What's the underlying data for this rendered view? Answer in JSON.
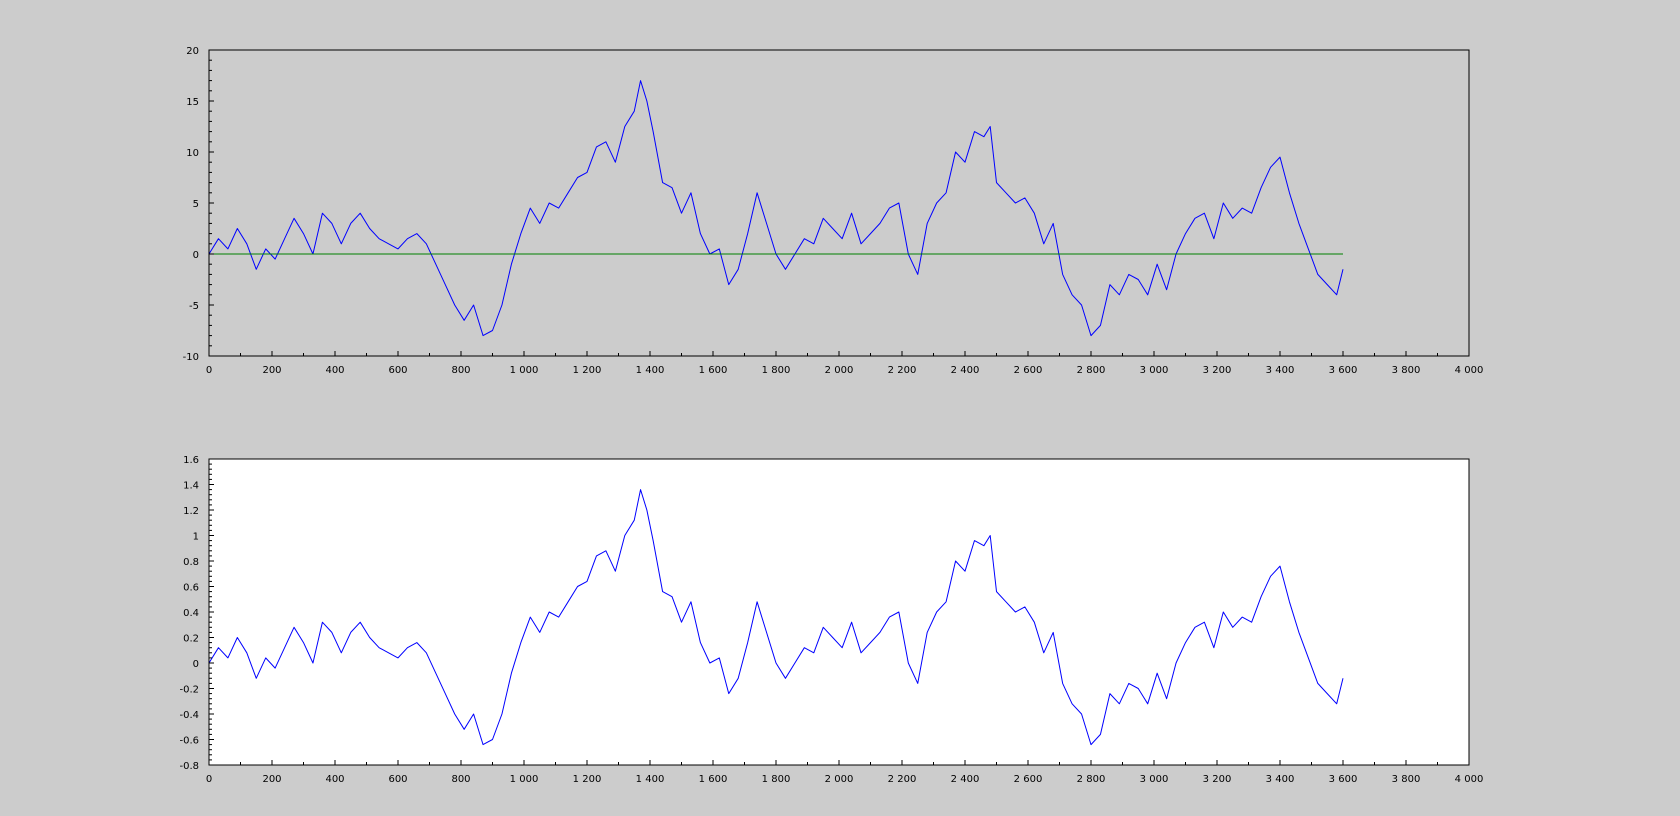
{
  "figure": {
    "background": "#cccccc"
  },
  "chart_data": [
    {
      "type": "line",
      "title": "",
      "xlabel": "",
      "ylabel": "",
      "background": "#cccccc",
      "xlim": [
        0,
        4000
      ],
      "ylim": [
        -10,
        20
      ],
      "x_ticks": [
        0,
        200,
        400,
        600,
        800,
        1000,
        1200,
        1400,
        1600,
        1800,
        2000,
        2200,
        2400,
        2600,
        2800,
        3000,
        3200,
        3400,
        3600,
        3800,
        4000
      ],
      "x_tick_labels": [
        "0",
        "200",
        "400",
        "600",
        "800",
        "1 000",
        "1 200",
        "1 400",
        "1 600",
        "1 800",
        "2 000",
        "2 200",
        "2 400",
        "2 600",
        "2 800",
        "3 000",
        "3 200",
        "3 400",
        "3 600",
        "3 800",
        "4 000"
      ],
      "y_ticks": [
        -10,
        -5,
        0,
        5,
        10,
        15,
        20
      ],
      "y_tick_labels": [
        "-10",
        "-5",
        "0",
        "5",
        "10",
        "15",
        "20"
      ],
      "grid": false,
      "series": [
        {
          "color": "#0000ff",
          "x": [
            0,
            30,
            60,
            90,
            120,
            150,
            180,
            210,
            240,
            270,
            300,
            330,
            360,
            390,
            420,
            450,
            480,
            510,
            540,
            570,
            600,
            630,
            660,
            690,
            720,
            750,
            780,
            810,
            840,
            870,
            900,
            930,
            960,
            990,
            1020,
            1050,
            1080,
            1110,
            1140,
            1170,
            1200,
            1230,
            1260,
            1290,
            1320,
            1350,
            1370,
            1390,
            1410,
            1440,
            1470,
            1500,
            1530,
            1560,
            1590,
            1620,
            1650,
            1680,
            1710,
            1740,
            1770,
            1800,
            1830,
            1860,
            1890,
            1920,
            1950,
            1980,
            2010,
            2040,
            2070,
            2100,
            2130,
            2160,
            2190,
            2220,
            2250,
            2280,
            2310,
            2340,
            2370,
            2400,
            2430,
            2460,
            2480,
            2500,
            2530,
            2560,
            2590,
            2620,
            2650,
            2680,
            2710,
            2740,
            2770,
            2800,
            2830,
            2860,
            2890,
            2920,
            2950,
            2980,
            3010,
            3040,
            3070,
            3100,
            3130,
            3160,
            3190,
            3220,
            3250,
            3280,
            3310,
            3340,
            3370,
            3400,
            3430,
            3460,
            3490,
            3520,
            3550,
            3580,
            3600
          ],
          "y": [
            0,
            1.5,
            0.5,
            2.5,
            1,
            -1.5,
            0.5,
            -0.5,
            1.5,
            3.5,
            2,
            0,
            4,
            3,
            1,
            3,
            4,
            2.5,
            1.5,
            1,
            0.5,
            1.5,
            2,
            1,
            -1,
            -3,
            -5,
            -6.5,
            -5,
            -8,
            -7.5,
            -5,
            -1,
            2,
            4.5,
            3,
            5,
            4.5,
            6,
            7.5,
            8,
            10.5,
            11,
            9,
            12.5,
            14,
            17,
            15,
            12,
            7,
            6.5,
            4,
            6,
            2,
            0,
            0.5,
            -3,
            -1.5,
            2,
            6,
            3,
            0,
            -1.5,
            0,
            1.5,
            1,
            3.5,
            2.5,
            1.5,
            4,
            1,
            2,
            3,
            4.5,
            5,
            0,
            -2,
            3,
            5,
            6,
            10,
            9,
            12,
            11.5,
            12.5,
            7,
            6,
            5,
            5.5,
            4,
            1,
            3,
            -2,
            -4,
            -5,
            -8,
            -7,
            -3,
            -4,
            -2,
            -2.5,
            -4,
            -1,
            -3.5,
            0,
            2,
            3.5,
            4,
            1.5,
            5,
            3.5,
            4.5,
            4,
            6.5,
            8.5,
            9.5,
            6,
            3,
            0.5,
            -2,
            -3,
            -4,
            -1.5
          ]
        },
        {
          "color": "#008000",
          "x": [
            0,
            3600
          ],
          "y": [
            0,
            0
          ]
        }
      ]
    },
    {
      "type": "line",
      "title": "",
      "xlabel": "",
      "ylabel": "",
      "background": "#ffffff",
      "xlim": [
        0,
        4000
      ],
      "ylim": [
        -0.8,
        1.6
      ],
      "x_ticks": [
        0,
        200,
        400,
        600,
        800,
        1000,
        1200,
        1400,
        1600,
        1800,
        2000,
        2200,
        2400,
        2600,
        2800,
        3000,
        3200,
        3400,
        3600,
        3800,
        4000
      ],
      "x_tick_labels": [
        "0",
        "200",
        "400",
        "600",
        "800",
        "1 000",
        "1 200",
        "1 400",
        "1 600",
        "1 800",
        "2 000",
        "2 200",
        "2 400",
        "2 600",
        "2 800",
        "3 000",
        "3 200",
        "3 400",
        "3 600",
        "3 800",
        "4 000"
      ],
      "y_ticks": [
        -0.8,
        -0.6,
        -0.4,
        -0.2,
        0,
        0.2,
        0.4,
        0.6,
        0.8,
        1,
        1.2,
        1.4,
        1.6
      ],
      "y_tick_labels": [
        "-0.8",
        "-0.6",
        "-0.4",
        "-0.2",
        "0",
        "0.2",
        "0.4",
        "0.6",
        "0.8",
        "1",
        "1.2",
        "1.4",
        "1.6"
      ],
      "grid": false,
      "series": [
        {
          "color": "#0000ff",
          "x": [
            0,
            30,
            60,
            90,
            120,
            150,
            180,
            210,
            240,
            270,
            300,
            330,
            360,
            390,
            420,
            450,
            480,
            510,
            540,
            570,
            600,
            630,
            660,
            690,
            720,
            750,
            780,
            810,
            840,
            870,
            900,
            930,
            960,
            990,
            1020,
            1050,
            1080,
            1110,
            1140,
            1170,
            1200,
            1230,
            1260,
            1290,
            1320,
            1350,
            1370,
            1390,
            1410,
            1440,
            1470,
            1500,
            1530,
            1560,
            1590,
            1620,
            1650,
            1680,
            1710,
            1740,
            1770,
            1800,
            1830,
            1860,
            1890,
            1920,
            1950,
            1980,
            2010,
            2040,
            2070,
            2100,
            2130,
            2160,
            2190,
            2220,
            2250,
            2280,
            2310,
            2340,
            2370,
            2400,
            2430,
            2460,
            2480,
            2500,
            2530,
            2560,
            2590,
            2620,
            2650,
            2680,
            2710,
            2740,
            2770,
            2800,
            2830,
            2860,
            2890,
            2920,
            2950,
            2980,
            3010,
            3040,
            3070,
            3100,
            3130,
            3160,
            3190,
            3220,
            3250,
            3280,
            3310,
            3340,
            3370,
            3400,
            3430,
            3460,
            3490,
            3520,
            3550,
            3580,
            3600
          ],
          "y": [
            0,
            0.12,
            0.04,
            0.2,
            0.08,
            -0.12,
            0.04,
            -0.04,
            0.12,
            0.28,
            0.16,
            0,
            0.32,
            0.24,
            0.08,
            0.24,
            0.32,
            0.2,
            0.12,
            0.08,
            0.04,
            0.12,
            0.16,
            0.08,
            -0.08,
            -0.24,
            -0.4,
            -0.52,
            -0.4,
            -0.64,
            -0.6,
            -0.4,
            -0.08,
            0.16,
            0.36,
            0.24,
            0.4,
            0.36,
            0.48,
            0.6,
            0.64,
            0.84,
            0.88,
            0.72,
            1,
            1.12,
            1.36,
            1.2,
            0.96,
            0.56,
            0.52,
            0.32,
            0.48,
            0.16,
            0,
            0.04,
            -0.24,
            -0.12,
            0.16,
            0.48,
            0.24,
            0,
            -0.12,
            0,
            0.12,
            0.08,
            0.28,
            0.2,
            0.12,
            0.32,
            0.08,
            0.16,
            0.24,
            0.36,
            0.4,
            0,
            -0.16,
            0.24,
            0.4,
            0.48,
            0.8,
            0.72,
            0.96,
            0.92,
            1,
            0.56,
            0.48,
            0.4,
            0.44,
            0.32,
            0.08,
            0.24,
            -0.16,
            -0.32,
            -0.4,
            -0.64,
            -0.56,
            -0.24,
            -0.32,
            -0.16,
            -0.2,
            -0.32,
            -0.08,
            -0.28,
            0,
            0.16,
            0.28,
            0.32,
            0.12,
            0.4,
            0.28,
            0.36,
            0.32,
            0.52,
            0.68,
            0.76,
            0.48,
            0.24,
            0.04,
            -0.16,
            -0.24,
            -0.32,
            -0.12
          ]
        }
      ]
    }
  ]
}
